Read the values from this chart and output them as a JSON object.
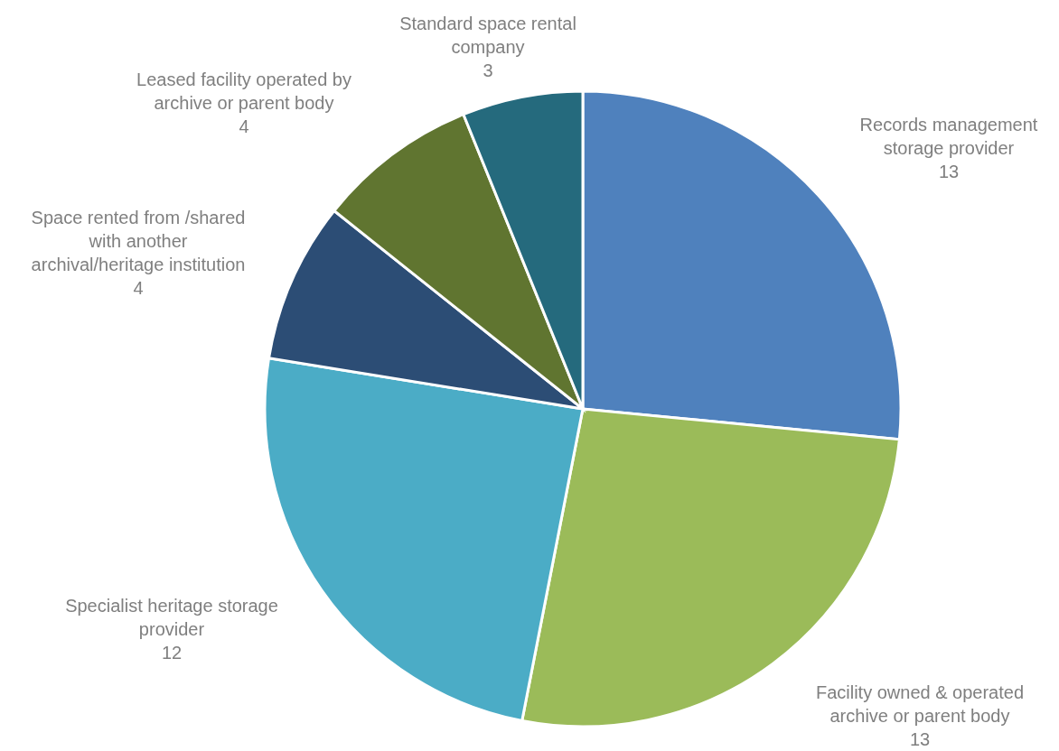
{
  "chart_data": {
    "type": "pie",
    "categories": [
      "Records management storage provider",
      "Facility owned & operated archive or parent body",
      "Specialist heritage storage provider",
      "Space rented from /shared with another archival/heritage institution",
      "Leased facility operated by archive or parent body",
      "Standard space rental company"
    ],
    "values": [
      13,
      13,
      12,
      4,
      4,
      3
    ],
    "colors": [
      "#4f81bd",
      "#9bbb59",
      "#4bacc6",
      "#2c4d75",
      "#607530",
      "#256a7d"
    ],
    "data_labels": true
  }
}
